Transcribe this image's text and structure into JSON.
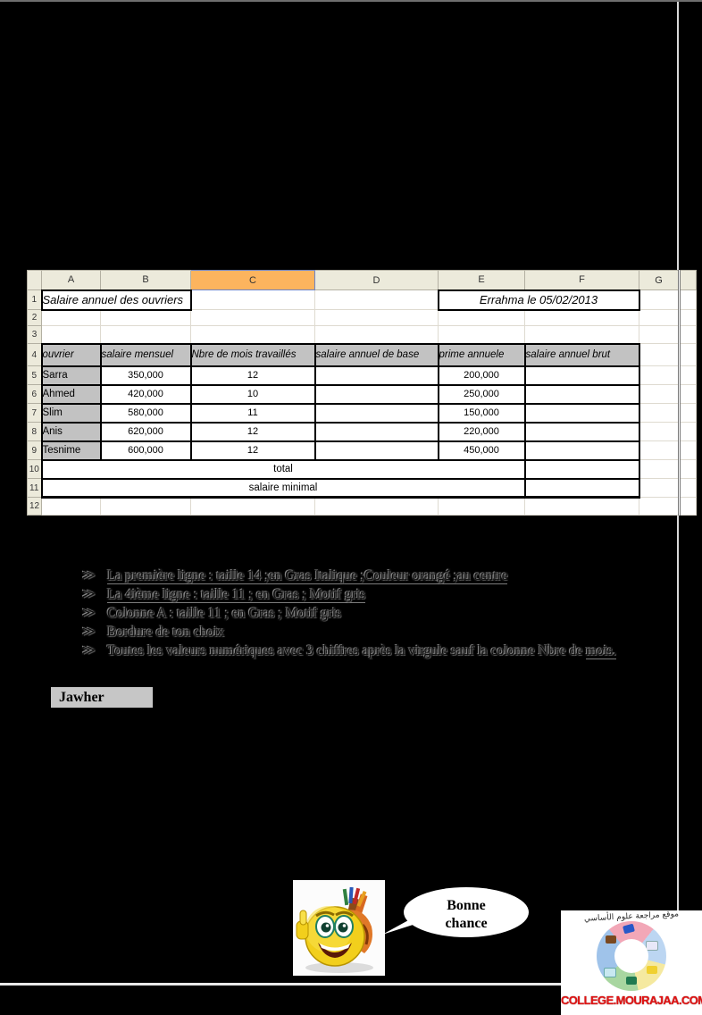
{
  "accent_colors": {
    "selected_column_orange": "#fcb45e",
    "cell_gray": "#c2c2c2",
    "header_beige": "#eceadb",
    "logo_red": "#e01414"
  },
  "spreadsheet": {
    "column_headers": [
      "A",
      "B",
      "C",
      "D",
      "E",
      "F",
      "G"
    ],
    "selected_column": "C",
    "row_headers": [
      "1",
      "2",
      "3",
      "4",
      "5",
      "6",
      "7",
      "8",
      "9",
      "10",
      "11",
      "12"
    ],
    "title_cell": "Salaire annuel des ouvriers",
    "date_cell": "Errahma le 05/02/2013",
    "table_headers": [
      "ouvrier",
      "salaire mensuel",
      "Nbre de mois travaillés",
      "salaire annuel de base",
      "prime annuele",
      "salaire annuel brut"
    ],
    "rows": [
      {
        "ouvrier": "Sarra",
        "salaire_mensuel": "350,000",
        "nbre_mois": "12",
        "salaire_base": "",
        "prime": "200,000",
        "brut": ""
      },
      {
        "ouvrier": "Ahmed",
        "salaire_mensuel": "420,000",
        "nbre_mois": "10",
        "salaire_base": "",
        "prime": "250,000",
        "brut": ""
      },
      {
        "ouvrier": "Slim",
        "salaire_mensuel": "580,000",
        "nbre_mois": "11",
        "salaire_base": "",
        "prime": "150,000",
        "brut": ""
      },
      {
        "ouvrier": "Anis",
        "salaire_mensuel": "620,000",
        "nbre_mois": "12",
        "salaire_base": "",
        "prime": "220,000",
        "brut": ""
      },
      {
        "ouvrier": "Tesnime",
        "salaire_mensuel": "600,000",
        "nbre_mois": "12",
        "salaire_base": "",
        "prime": "450,000",
        "brut": ""
      }
    ],
    "total_label": "total",
    "minimal_label": "salaire minimal"
  },
  "instructions": {
    "bullet_glyph": "≫",
    "items": [
      {
        "text": "La première ligne : taille 14 ;en Gras Italique ;Couleur orangé ;au centre",
        "underline": true,
        "tail": "",
        "tail_underline": false
      },
      {
        "text": "La 4ième ligne  : taille 11 ; en Gras ; Motif gris",
        "underline": true,
        "tail": "",
        "tail_underline": false
      },
      {
        "text": "Colonne A :  taille 11 ; en Gras ; Motif gris",
        "underline": false,
        "tail": "",
        "tail_underline": false
      },
      {
        "text": "Bordure de ton choix",
        "underline": false,
        "tail": "",
        "tail_underline": false
      },
      {
        "text": "Toutes les valeurs numériques avec 3 chiffres après la virgule sauf la colonne Nbre de ",
        "underline": false,
        "tail": "mois.",
        "tail_underline": true
      }
    ]
  },
  "signature": "Jawher",
  "mascot": {
    "bubble_line1": "Bonne",
    "bubble_line2": "chance"
  },
  "logo": {
    "arabic_caption": "موقع مراجعة علوم الأساسي",
    "site": "COLLEGE.MOURAJAA.COM"
  }
}
